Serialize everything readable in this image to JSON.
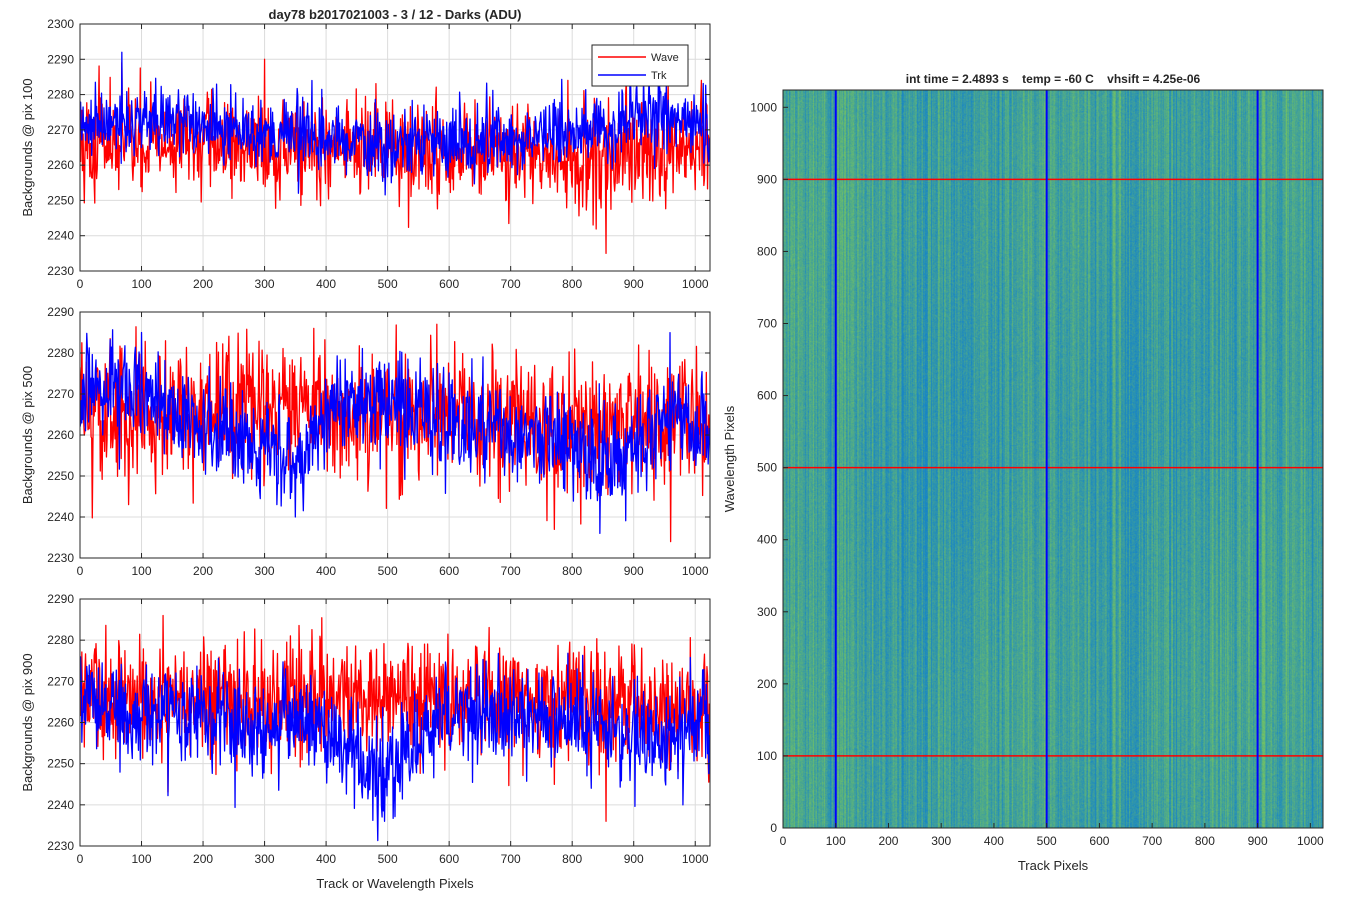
{
  "figure": {
    "title": "day78 b2017021003 - 3 / 12 - Darks (ADU)",
    "colors": {
      "wave": "#ff0000",
      "trk": "#0000ff",
      "grid": "#dcdcdc",
      "axis": "#262626"
    }
  },
  "chart_data": [
    {
      "type": "line",
      "title": "day78 b2017021003 - 3 / 12 - Darks (ADU)",
      "xlabel": "",
      "ylabel": "Backgrounds @ pix 100",
      "xlim": [
        0,
        1024
      ],
      "ylim": [
        2230,
        2300
      ],
      "xticks": [
        0,
        100,
        200,
        300,
        400,
        500,
        600,
        700,
        800,
        900,
        1000
      ],
      "yticks": [
        2230,
        2240,
        2250,
        2260,
        2270,
        2280,
        2290,
        2300
      ],
      "grid": true,
      "legend": {
        "placement": "top-right",
        "entries": [
          "Wave",
          "Trk"
        ]
      },
      "series": [
        {
          "name": "Wave",
          "color": "#ff0000",
          "n": 1024,
          "mean": 2265,
          "sd": 7,
          "trend": [
            [
              0,
              2266
            ],
            [
              300,
              2266
            ],
            [
              600,
              2263
            ],
            [
              800,
              2262
            ],
            [
              1024,
              2264
            ]
          ],
          "extremes": [
            [
              68,
              2289
            ],
            [
              300,
              2290
            ],
            [
              855,
              2235
            ],
            [
              1010,
              2284
            ]
          ]
        },
        {
          "name": "Trk",
          "color": "#0000ff",
          "n": 1024,
          "mean": 2269,
          "sd": 5,
          "trend": [
            [
              0,
              2270
            ],
            [
              100,
              2273
            ],
            [
              300,
              2270
            ],
            [
              500,
              2266
            ],
            [
              700,
              2268
            ],
            [
              850,
              2270
            ],
            [
              930,
              2276
            ],
            [
              1024,
              2271
            ]
          ],
          "extremes": [
            [
              68,
              2292
            ],
            [
              925,
              2285
            ]
          ]
        }
      ]
    },
    {
      "type": "line",
      "xlabel": "",
      "ylabel": "Backgrounds @ pix 500",
      "xlim": [
        0,
        1024
      ],
      "ylim": [
        2230,
        2290
      ],
      "xticks": [
        0,
        100,
        200,
        300,
        400,
        500,
        600,
        700,
        800,
        900,
        1000
      ],
      "yticks": [
        2230,
        2240,
        2250,
        2260,
        2270,
        2280,
        2290
      ],
      "grid": true,
      "series": [
        {
          "name": "Wave",
          "color": "#ff0000",
          "n": 1024,
          "mean": 2264,
          "sd": 8,
          "trend": [
            [
              0,
              2265
            ],
            [
              300,
              2266
            ],
            [
              600,
              2264
            ],
            [
              800,
              2262
            ],
            [
              1024,
              2262
            ]
          ],
          "extremes": [
            [
              380,
              2286
            ],
            [
              580,
              2287
            ],
            [
              960,
              2234
            ]
          ]
        },
        {
          "name": "Trk",
          "color": "#0000ff",
          "n": 1024,
          "mean": 2264,
          "sd": 6,
          "trend": [
            [
              0,
              2270
            ],
            [
              80,
              2272
            ],
            [
              200,
              2262
            ],
            [
              300,
              2258
            ],
            [
              370,
              2254
            ],
            [
              420,
              2268
            ],
            [
              600,
              2264
            ],
            [
              700,
              2260
            ],
            [
              800,
              2258
            ],
            [
              870,
              2252
            ],
            [
              950,
              2264
            ],
            [
              1024,
              2262
            ]
          ],
          "extremes": [
            [
              100,
              2285
            ],
            [
              350,
              2240
            ],
            [
              845,
              2236
            ]
          ]
        }
      ]
    },
    {
      "type": "line",
      "xlabel": "Track or Wavelength Pixels",
      "ylabel": "Backgrounds @ pix 900",
      "xlim": [
        0,
        1024
      ],
      "ylim": [
        2230,
        2290
      ],
      "xticks": [
        0,
        100,
        200,
        300,
        400,
        500,
        600,
        700,
        800,
        900,
        1000
      ],
      "yticks": [
        2230,
        2240,
        2250,
        2260,
        2270,
        2280,
        2290
      ],
      "grid": true,
      "series": [
        {
          "name": "Wave",
          "color": "#ff0000",
          "n": 1024,
          "mean": 2266,
          "sd": 7,
          "trend": [
            [
              0,
              2266
            ],
            [
              500,
              2266
            ],
            [
              800,
              2265
            ],
            [
              1024,
              2264
            ]
          ],
          "extremes": [
            [
              135,
              2286
            ],
            [
              855,
              2236
            ]
          ]
        },
        {
          "name": "Trk",
          "color": "#0000ff",
          "n": 1024,
          "mean": 2260,
          "sd": 6,
          "trend": [
            [
              0,
              2266
            ],
            [
              100,
              2262
            ],
            [
              250,
              2260
            ],
            [
              400,
              2258
            ],
            [
              490,
              2248
            ],
            [
              600,
              2262
            ],
            [
              800,
              2260
            ],
            [
              950,
              2256
            ],
            [
              1024,
              2262
            ]
          ],
          "extremes": [
            [
              495,
              2236
            ],
            [
              980,
              2240
            ]
          ]
        }
      ]
    },
    {
      "type": "heatmap",
      "title": "int time = 2.4893 s    temp = -60 C    vhsift = 4.25e-06",
      "xlabel": "Track Pixels",
      "ylabel": "Wavelength Pixels",
      "xlim": [
        0,
        1024
      ],
      "ylim": [
        0,
        1024
      ],
      "xticks": [
        0,
        100,
        200,
        300,
        400,
        500,
        600,
        700,
        800,
        900,
        1000
      ],
      "yticks": [
        0,
        100,
        200,
        300,
        400,
        500,
        600,
        700,
        800,
        900,
        1000
      ],
      "colormap": "parula",
      "base_color": "#1f9fb8",
      "markers": {
        "vertical_lines": {
          "color": "#0000ff",
          "x": [
            100,
            500,
            900
          ]
        },
        "horizontal_lines": {
          "color": "#ff0000",
          "y": [
            100,
            500,
            900
          ]
        }
      }
    }
  ]
}
